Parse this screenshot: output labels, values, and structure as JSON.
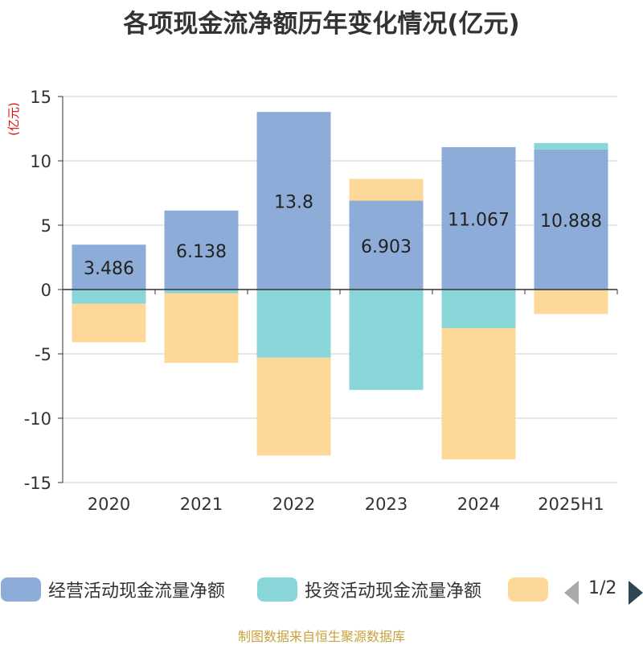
{
  "title": "各项现金流净额历年变化情况(亿元)",
  "source_text": "制图数据来自恒生聚源数据库",
  "pager": "1/2",
  "chart_data": {
    "type": "bar",
    "stacked": true,
    "ylabel": "(亿元)",
    "ylim": [
      -15,
      15
    ],
    "yticks": [
      15,
      10,
      5,
      0,
      -5,
      -10,
      -15
    ],
    "categories": [
      "2020",
      "2021",
      "2022",
      "2023",
      "2024",
      "2025H1"
    ],
    "series": [
      {
        "name": "经营活动现金流量净额",
        "color": "#8eacd8",
        "values": [
          3.486,
          6.138,
          13.8,
          6.903,
          11.067,
          10.888
        ],
        "labels": [
          "3.486",
          "6.138",
          "13.8",
          "6.903",
          "11.067",
          "10.888"
        ]
      },
      {
        "name": "投资活动现金流量净额",
        "color": "#88d6d7",
        "values": [
          -1.1,
          -0.3,
          -5.3,
          -7.8,
          -3.0,
          0.5
        ]
      },
      {
        "name": "",
        "color": "#fed898",
        "values": [
          -3.0,
          -5.4,
          -7.6,
          1.7,
          -10.2,
          -1.9
        ]
      }
    ],
    "grid": true,
    "legend": "bottom"
  }
}
